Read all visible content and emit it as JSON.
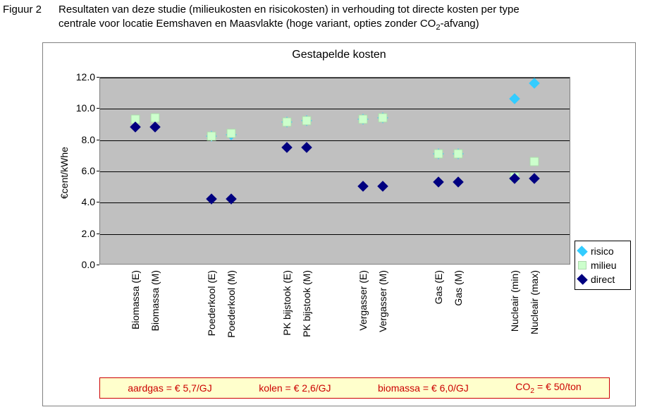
{
  "caption": {
    "label": "Figuur 2",
    "text_line1": "Resultaten van deze studie (milieukosten en risicokosten) in verhouding tot directe kosten per type",
    "text_line2_pre": "centrale voor locatie Eemshaven en Maasvlakte (hoge variant, opties zonder CO",
    "text_line2_sub": "2",
    "text_line2_post": "-afvang)"
  },
  "chart": {
    "type": "scatter-categorical",
    "title": "Gestapelde kosten",
    "title_fontsize": 16,
    "background_color": "#ffffff",
    "plot_bg_color": "#c0c0c0",
    "grid_color": "#000000",
    "axis_color": "#808080",
    "ylabel": "€cent/kWhe",
    "label_fontsize": 14,
    "tick_fontsize": 14,
    "ylim": [
      0.0,
      12.0
    ],
    "ytick_step": 2.0,
    "yticks": [
      "0.0",
      "2.0",
      "4.0",
      "6.0",
      "8.0",
      "10.0",
      "12.0"
    ],
    "categories": [
      "Biomassa (E)",
      "Biomassa (M)",
      "Poederkool (E)",
      "Poederkool (M)",
      "PK bijstook (E)",
      "PK bijstook (M)",
      "Vergasser (E)",
      "Vergasser (M)",
      "Gas (E)",
      "Gas (M)",
      "Nucleair (min)",
      "Nucleair (max)"
    ],
    "group_gaps_after": [
      1,
      3,
      5,
      7,
      9
    ],
    "series": [
      {
        "name": "risico",
        "marker": "diamond",
        "color": "#33ccff",
        "values": [
          null,
          null,
          8.2,
          8.3,
          9.1,
          9.2,
          9.3,
          9.4,
          7.1,
          7.1,
          10.6,
          11.6
        ]
      },
      {
        "name": "milieu",
        "marker": "square",
        "color": "#ccffcc",
        "values": [
          9.3,
          9.4,
          8.2,
          8.4,
          9.1,
          9.2,
          9.3,
          9.4,
          7.1,
          7.1,
          5.6,
          6.6
        ]
      },
      {
        "name": "direct",
        "marker": "diamond",
        "color": "#000080",
        "values": [
          8.8,
          8.8,
          4.2,
          4.2,
          7.5,
          7.5,
          5.0,
          5.0,
          5.3,
          5.3,
          5.5,
          5.5
        ]
      }
    ],
    "legend": {
      "position": "right",
      "entries": [
        "risico",
        "milieu",
        "direct"
      ]
    },
    "assumptions": {
      "bg_color": "#ffffcc",
      "border_color": "#cc0000",
      "text_color": "#cc0000",
      "items": [
        "aardgas = € 5,7/GJ",
        "kolen = € 2,6/GJ",
        "biomassa = € 6,0/GJ"
      ],
      "co2_pre": "CO",
      "co2_sub": "2",
      "co2_post": " = € 50/ton"
    }
  }
}
